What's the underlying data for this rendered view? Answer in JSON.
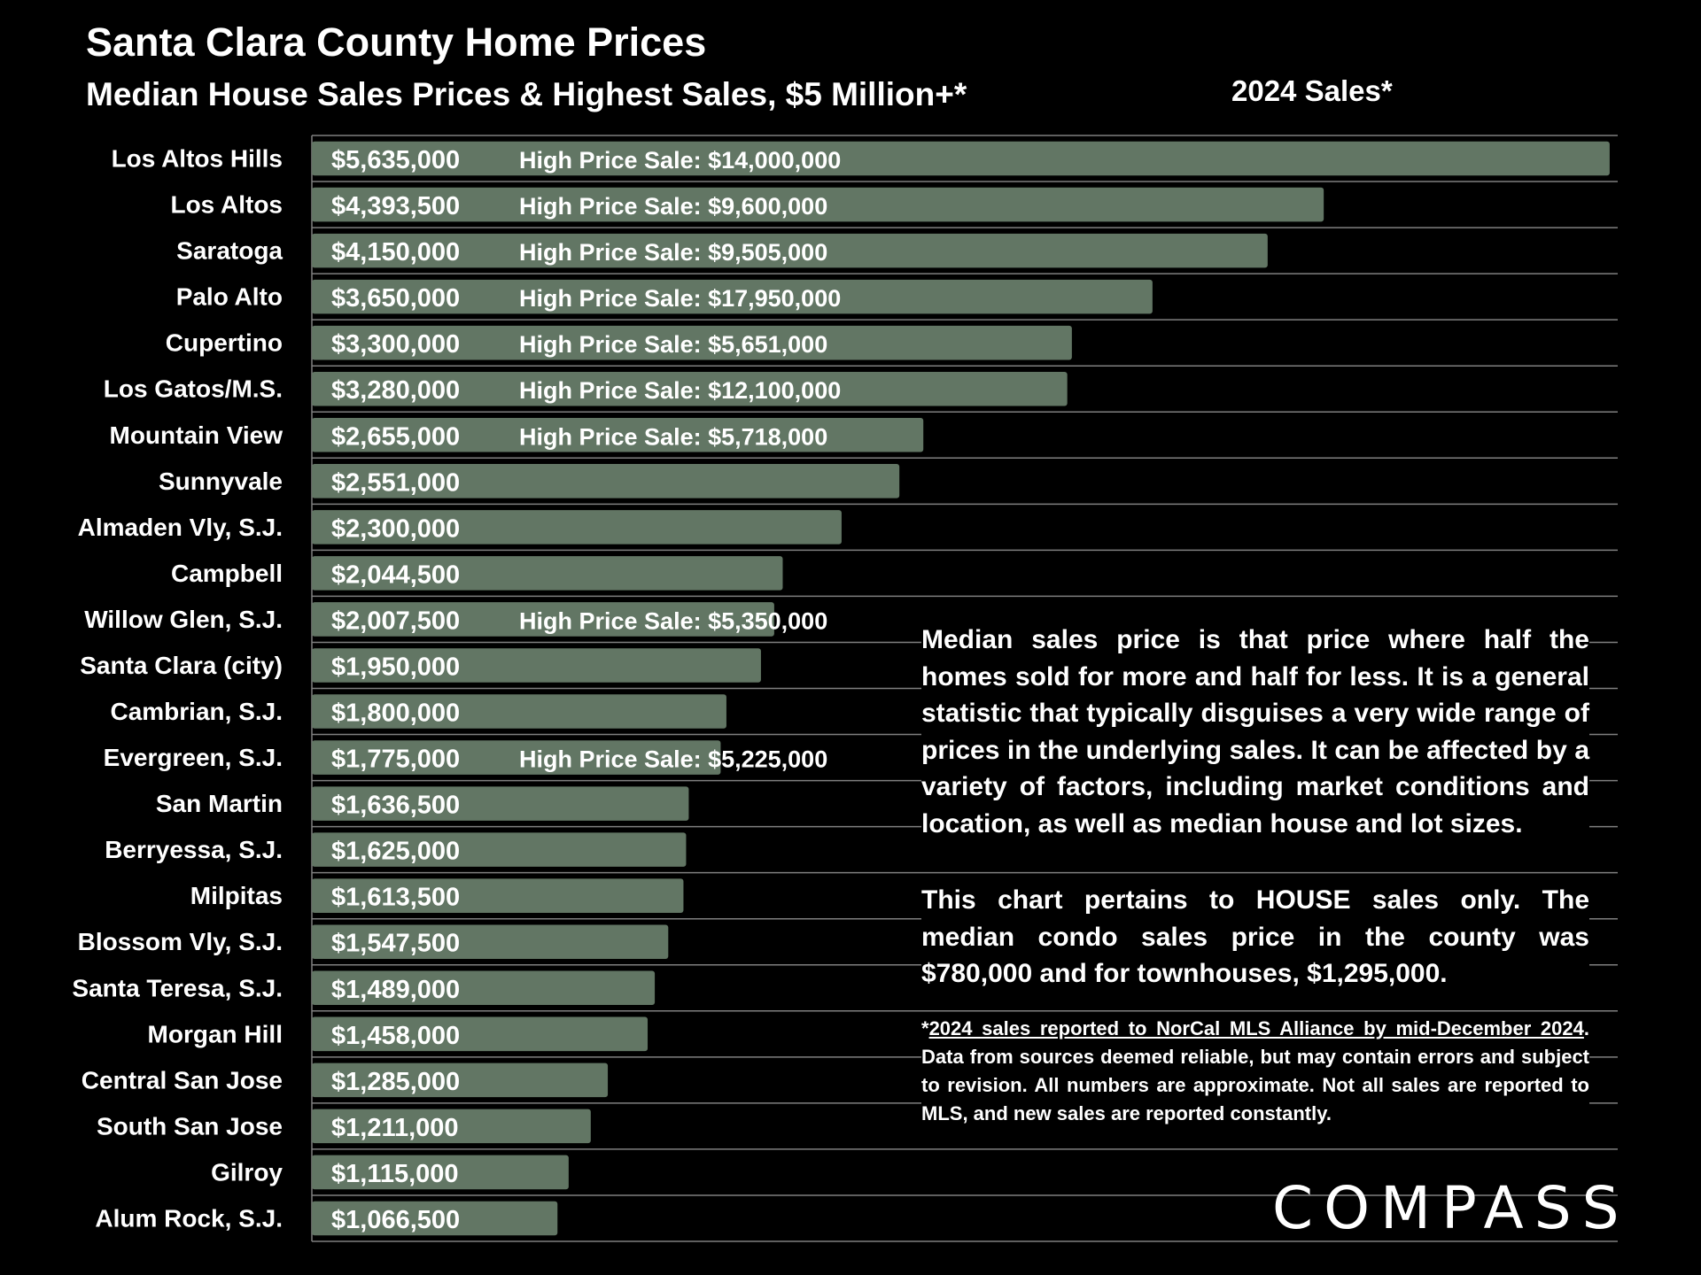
{
  "header": {
    "title": "Santa Clara County Home Prices",
    "subtitle": "Median House Sales Prices & Highest Sales, $5 Million+*",
    "period": "2024 Sales*"
  },
  "notes": {
    "paragraph1": "Median sales price is that price where half the homes sold for more and half for less. It is a general statistic that typically disguises a very wide range of prices in the underlying sales. It can be affected by a variety of factors, including market conditions and location, as well as median house and lot sizes.",
    "paragraph2": "This chart pertains to HOUSE sales only. The median condo sales price in the county was $780,000 and for townhouses, $1,295,000.",
    "footnote_star": "*",
    "footnote_underlined": "2024 sales reported to NorCal MLS Alliance by mid-December 2024",
    "footnote_rest": ". Data from sources deemed reliable, but may contain errors and subject to revision. All numbers are approximate. Not all sales are reported to MLS, and new sales are reported constantly."
  },
  "brand": {
    "logo_text": "COMPASS"
  },
  "colors": {
    "background": "#000000",
    "bar": "#627664",
    "text": "#ffffff",
    "grid": "#7f7f7f"
  },
  "chart_data": {
    "type": "bar",
    "orientation": "horizontal",
    "grid": true,
    "high_sale_prefix": "High Price Sale:",
    "categories": [
      "Los Altos Hills",
      "Los Altos",
      "Saratoga",
      "Palo Alto",
      "Cupertino",
      "Los Gatos/M.S.",
      "Mountain View",
      "Sunnyvale",
      "Almaden Vly, S.J.",
      "Campbell",
      "Willow Glen, S.J.",
      "Santa Clara (city)",
      "Cambrian, S.J.",
      "Evergreen, S.J.",
      "San Martin",
      "Berryessa, S.J.",
      "Milpitas",
      "Blossom Vly, S.J.",
      "Santa Teresa, S.J.",
      "Morgan Hill",
      "Central San Jose",
      "South San Jose",
      "Gilroy",
      "Alum Rock, S.J."
    ],
    "values": [
      5635000,
      4393500,
      4150000,
      3650000,
      3300000,
      3280000,
      2655000,
      2551000,
      2300000,
      2044500,
      2007500,
      1950000,
      1800000,
      1775000,
      1636500,
      1625000,
      1613500,
      1547500,
      1489000,
      1458000,
      1285000,
      1211000,
      1115000,
      1066500
    ],
    "value_labels": [
      "$5,635,000",
      "$4,393,500",
      "$4,150,000",
      "$3,650,000",
      "$3,300,000",
      "$3,280,000",
      "$2,655,000",
      "$2,551,000",
      "$2,300,000",
      "$2,044,500",
      "$2,007,500",
      "$1,950,000",
      "$1,800,000",
      "$1,775,000",
      "$1,636,500",
      "$1,625,000",
      "$1,613,500",
      "$1,547,500",
      "$1,489,000",
      "$1,458,000",
      "$1,285,000",
      "$1,211,000",
      "$1,115,000",
      "$1,066,500"
    ],
    "high_sales": [
      "$14,000,000",
      "$9,600,000",
      "$9,505,000",
      "$17,950,000",
      "$5,651,000",
      "$12,100,000",
      "$5,718,000",
      "",
      "",
      "",
      "$5,350,000",
      "",
      "",
      "$5,225,000",
      "",
      "",
      "",
      "",
      "",
      "",
      "",
      "",
      "",
      ""
    ],
    "xlim": [
      0,
      5670000
    ]
  }
}
